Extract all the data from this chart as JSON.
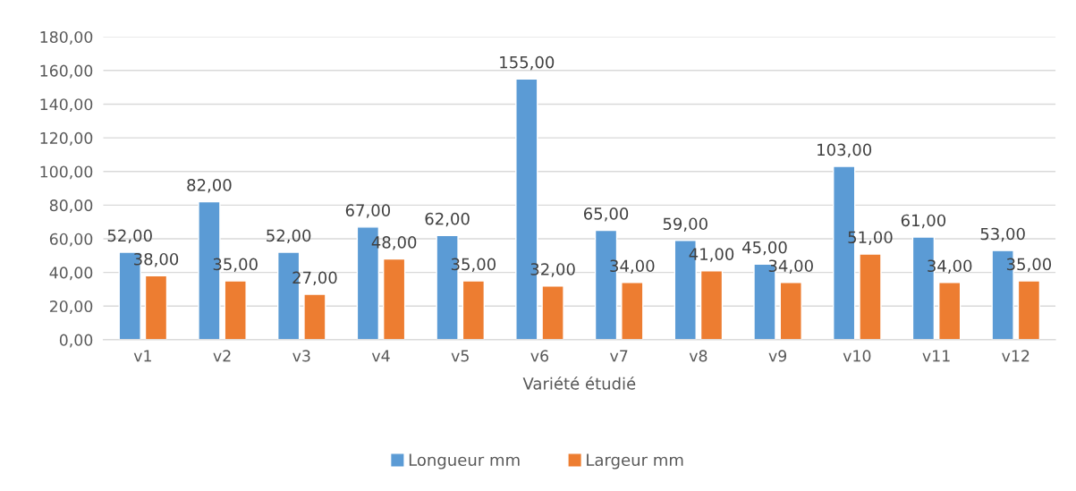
{
  "chart_data": {
    "type": "bar",
    "xlabel": "Variété étudié",
    "categories": [
      "v1",
      "v2",
      "v3",
      "v4",
      "v5",
      "v6",
      "v7",
      "v8",
      "v9",
      "v10",
      "v11",
      "v12"
    ],
    "series": [
      {
        "name": "Longueur mm",
        "color": "#5b9bd5",
        "values": [
          52,
          82,
          52,
          67,
          62,
          155,
          65,
          59,
          45,
          103,
          61,
          53
        ],
        "value_labels": [
          "52,00",
          "82,00",
          "52,00",
          "67,00",
          "62,00",
          "155,00",
          "65,00",
          "59,00",
          "45,00",
          "103,00",
          "61,00",
          "53,00"
        ]
      },
      {
        "name": "Largeur mm",
        "color": "#ed7d31",
        "values": [
          38,
          35,
          27,
          48,
          35,
          32,
          34,
          41,
          34,
          51,
          34,
          35
        ],
        "value_labels": [
          "38,00",
          "35,00",
          "27,00",
          "48,00",
          "35,00",
          "32,00",
          "34,00",
          "41,00",
          "34,00",
          "51,00",
          "34,00",
          "35,00"
        ]
      }
    ],
    "ylim": [
      0,
      180
    ],
    "yticks": [
      {
        "value": 0,
        "label": "0,00"
      },
      {
        "value": 20,
        "label": "20,00"
      },
      {
        "value": 40,
        "label": "40,00"
      },
      {
        "value": 60,
        "label": "60,00"
      },
      {
        "value": 80,
        "label": "80,00"
      },
      {
        "value": 100,
        "label": "100,00"
      },
      {
        "value": 120,
        "label": "120,00"
      },
      {
        "value": 140,
        "label": "140,00"
      },
      {
        "value": 160,
        "label": "160,00"
      },
      {
        "value": 180,
        "label": "180,00"
      }
    ],
    "grid": "y",
    "legend": "bottom"
  }
}
